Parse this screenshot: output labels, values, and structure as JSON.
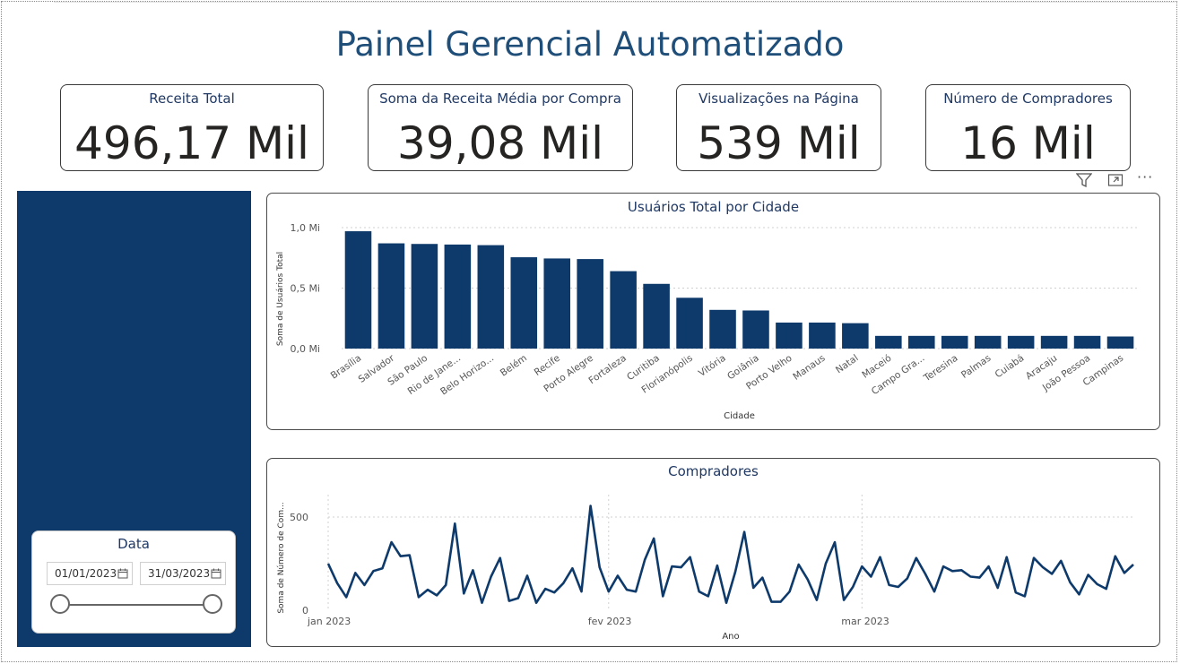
{
  "page": {
    "title": "Painel Gerencial Automatizado"
  },
  "kpis": [
    {
      "label": "Receita Total",
      "value": "496,17 Mil"
    },
    {
      "label": "Soma da Receita Média por Compra",
      "value": "39,08 Mil"
    },
    {
      "label": "Visualizações na Página",
      "value": "539 Mil"
    },
    {
      "label": "Número de Compradores",
      "value": "16 Mil"
    }
  ],
  "visual_toolbar": {
    "filter_icon": "filter-icon",
    "focus_icon": "focus-mode-icon",
    "more_icon": "more-options-icon",
    "more_label": "···"
  },
  "slicer": {
    "title": "Data",
    "start_date": "01/01/2023",
    "end_date": "31/03/2023",
    "calendar_icon": "calendar-icon"
  },
  "colors": {
    "bar": "#0e3a6b",
    "line": "#0e3a6b",
    "sidebar": "#0e3a6b",
    "title": "#1f4e79"
  },
  "chart_data": [
    {
      "type": "bar",
      "title": "Usuários Total por Cidade",
      "xlabel": "Cidade",
      "ylabel": "Soma de Usuários Total",
      "ylim": [
        0,
        1.0
      ],
      "yticks": [
        0,
        0.5,
        1.0
      ],
      "ytick_labels": [
        "0,0 Mi",
        "0,5 Mi",
        "1,0 Mi"
      ],
      "grid": true,
      "categories": [
        "Brasília",
        "Salvador",
        "São Paulo",
        "Rio de Jane...",
        "Belo Horizo...",
        "Belém",
        "Recife",
        "Porto Alegre",
        "Fortaleza",
        "Curitiba",
        "Florianópolis",
        "Vitória",
        "Goiânia",
        "Porto Velho",
        "Manaus",
        "Natal",
        "Maceió",
        "Campo Gra...",
        "Teresina",
        "Palmas",
        "Cuiabá",
        "Aracaju",
        "João Pessoa",
        "Campinas"
      ],
      "values": [
        0.97,
        0.87,
        0.865,
        0.86,
        0.855,
        0.755,
        0.745,
        0.74,
        0.64,
        0.535,
        0.42,
        0.32,
        0.315,
        0.215,
        0.215,
        0.21,
        0.105,
        0.105,
        0.105,
        0.105,
        0.105,
        0.105,
        0.105,
        0.1
      ]
    },
    {
      "type": "line",
      "title": "Compradores",
      "xlabel": "Ano",
      "ylabel": "Soma de Número de Com...",
      "ylim": [
        0,
        620
      ],
      "yticks": [
        0,
        500
      ],
      "ytick_labels": [
        "0",
        "500"
      ],
      "x_range": [
        "2023-01-01",
        "2023-03-31"
      ],
      "xticks": [
        "2023-01-01",
        "2023-02-01",
        "2023-03-01"
      ],
      "xtick_labels": [
        "jan 2023",
        "fev 2023",
        "mar 2023"
      ],
      "grid": true,
      "x": [
        "2023-01-01",
        "2023-01-02",
        "2023-01-03",
        "2023-01-04",
        "2023-01-05",
        "2023-01-06",
        "2023-01-07",
        "2023-01-08",
        "2023-01-09",
        "2023-01-10",
        "2023-01-11",
        "2023-01-12",
        "2023-01-13",
        "2023-01-14",
        "2023-01-15",
        "2023-01-16",
        "2023-01-17",
        "2023-01-18",
        "2023-01-19",
        "2023-01-20",
        "2023-01-21",
        "2023-01-22",
        "2023-01-23",
        "2023-01-24",
        "2023-01-25",
        "2023-01-26",
        "2023-01-27",
        "2023-01-28",
        "2023-01-29",
        "2023-01-30",
        "2023-01-31",
        "2023-02-01",
        "2023-02-02",
        "2023-02-03",
        "2023-02-04",
        "2023-02-05",
        "2023-02-06",
        "2023-02-07",
        "2023-02-08",
        "2023-02-09",
        "2023-02-10",
        "2023-02-11",
        "2023-02-12",
        "2023-02-13",
        "2023-02-14",
        "2023-02-15",
        "2023-02-16",
        "2023-02-17",
        "2023-02-18",
        "2023-02-19",
        "2023-02-20",
        "2023-02-21",
        "2023-02-22",
        "2023-02-23",
        "2023-02-24",
        "2023-02-25",
        "2023-02-26",
        "2023-02-27",
        "2023-02-28",
        "2023-03-01",
        "2023-03-02",
        "2023-03-03",
        "2023-03-04",
        "2023-03-05",
        "2023-03-06",
        "2023-03-07",
        "2023-03-08",
        "2023-03-09",
        "2023-03-10",
        "2023-03-11",
        "2023-03-12",
        "2023-03-13",
        "2023-03-14",
        "2023-03-15",
        "2023-03-16",
        "2023-03-17",
        "2023-03-18",
        "2023-03-19",
        "2023-03-20",
        "2023-03-21",
        "2023-03-22",
        "2023-03-23",
        "2023-03-24",
        "2023-03-25",
        "2023-03-26",
        "2023-03-27",
        "2023-03-28",
        "2023-03-29",
        "2023-03-30",
        "2023-03-31"
      ],
      "values": [
        250,
        145,
        70,
        200,
        135,
        210,
        225,
        365,
        290,
        295,
        70,
        110,
        80,
        135,
        465,
        90,
        215,
        40,
        180,
        280,
        50,
        65,
        185,
        40,
        115,
        95,
        145,
        225,
        100,
        560,
        230,
        100,
        185,
        110,
        100,
        270,
        385,
        75,
        235,
        230,
        285,
        100,
        75,
        240,
        40,
        205,
        420,
        120,
        175,
        45,
        45,
        100,
        245,
        165,
        55,
        250,
        365,
        55,
        125,
        235,
        180,
        285,
        135,
        125,
        170,
        280,
        195,
        100,
        235,
        210,
        215,
        180,
        175,
        235,
        120,
        285,
        95,
        75,
        280,
        230,
        195,
        265,
        150,
        85,
        190,
        140,
        115,
        290,
        200,
        245
      ]
    }
  ]
}
